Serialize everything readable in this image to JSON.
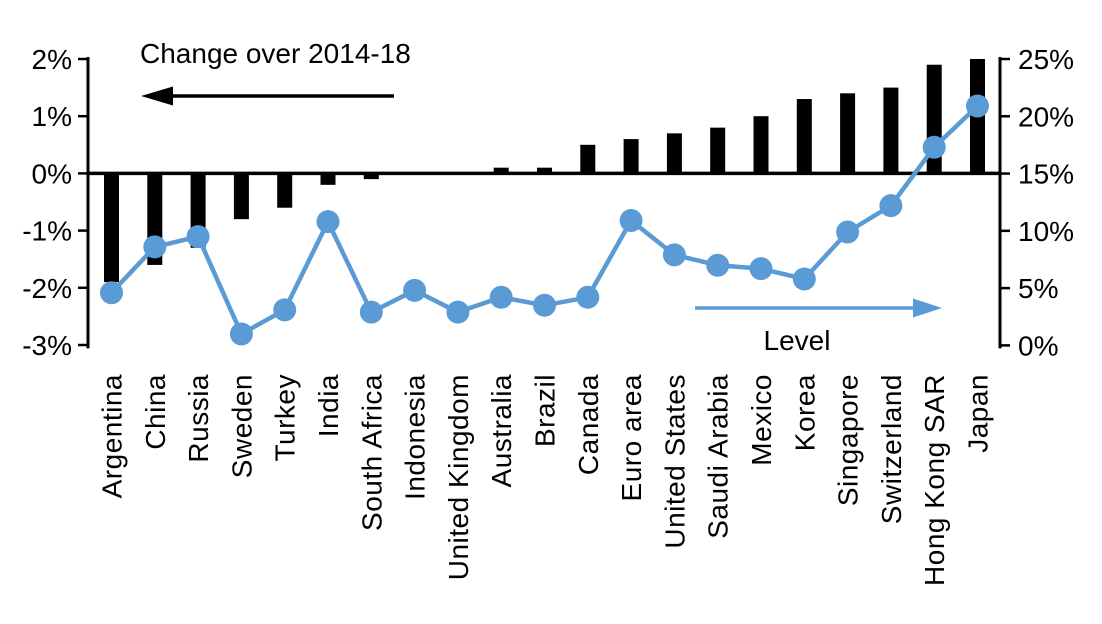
{
  "chart_data": {
    "type": "bar",
    "subtype": "dual-axis bar+line",
    "title": "",
    "categories": [
      "Argentina",
      "China",
      "Russia",
      "Sweden",
      "Turkey",
      "India",
      "South Africa",
      "Indonesia",
      "United Kingdom",
      "Australia",
      "Brazil",
      "Canada",
      "Euro area",
      "United States",
      "Saudi Arabia",
      "Mexico",
      "Korea",
      "Singapore",
      "Switzerland",
      "Hong Kong SAR",
      "Japan"
    ],
    "series": [
      {
        "name": "Change over 2014-18",
        "type": "bar",
        "axis": "left",
        "unit": "%",
        "color": "#000000",
        "values": [
          -1.9,
          -1.6,
          -1.3,
          -0.8,
          -0.6,
          -0.2,
          -0.1,
          0.0,
          0.0,
          0.1,
          0.1,
          0.5,
          0.6,
          0.7,
          0.8,
          1.0,
          1.3,
          1.4,
          1.5,
          1.9,
          2.0
        ]
      },
      {
        "name": "Level",
        "type": "line",
        "axis": "right",
        "unit": "%",
        "color": "#5B9BD5",
        "values": [
          4.6,
          8.6,
          9.5,
          1.0,
          3.1,
          10.8,
          2.9,
          4.8,
          2.9,
          4.2,
          3.5,
          4.2,
          10.9,
          7.9,
          7.0,
          6.7,
          5.8,
          9.9,
          12.2,
          17.3,
          20.9
        ]
      }
    ],
    "left_axis": {
      "min": -3,
      "max": 2,
      "tick_values": [
        2,
        1,
        0,
        -1,
        -2,
        -3
      ],
      "ticks": [
        "2%",
        "1%",
        "0%",
        "-1%",
        "-2%",
        "-3%"
      ]
    },
    "right_axis": {
      "min": 0,
      "max": 25,
      "tick_values": [
        25,
        20,
        15,
        10,
        5,
        0
      ],
      "ticks": [
        "25%",
        "20%",
        "15%",
        "10%",
        "5%",
        "0%"
      ]
    },
    "annotations": {
      "bar_label": "Change over 2014-18",
      "bar_arrow_direction": "left",
      "line_label": "Level",
      "line_arrow_direction": "right"
    },
    "grid": false,
    "legend_position": "in-plot annotations",
    "background": "#FFFFFF",
    "colors": {
      "bar": "#000000",
      "line": "#5B9BD5",
      "text": "#000000",
      "axis": "#000000"
    }
  }
}
